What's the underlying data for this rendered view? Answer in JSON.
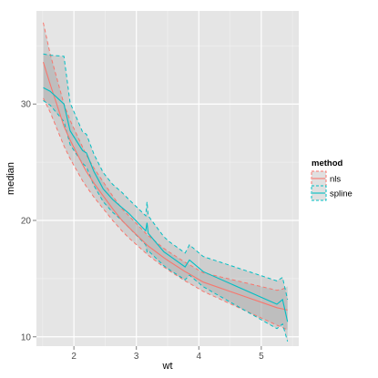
{
  "colors": {
    "panel_bg": "#e5e5e5",
    "grid_major": "#ffffff",
    "grid_minor": "#f2f2f2",
    "nls": "#f8766d",
    "spline": "#00bfc4",
    "ribbon_fill": "#999999",
    "text": "#4d4d4d"
  },
  "chart_data": {
    "type": "line",
    "title": "",
    "xlabel": "wt",
    "ylabel": "median",
    "xlim": [
      1.4,
      5.6
    ],
    "ylim": [
      9.2,
      38.0
    ],
    "x_ticks": [
      2,
      3,
      4,
      5
    ],
    "y_ticks": [
      10,
      20,
      30
    ],
    "grid": true,
    "legend": {
      "title": "method",
      "position": "right",
      "entries": [
        "nls",
        "spline"
      ]
    },
    "series": [
      {
        "name": "nls",
        "x": [
          1.51,
          1.62,
          1.84,
          1.94,
          2.14,
          2.2,
          2.32,
          2.47,
          2.62,
          2.77,
          2.88,
          3.15,
          3.19,
          3.44,
          3.52,
          3.78,
          3.85,
          4.07,
          5.25,
          5.34,
          5.42
        ],
        "y": [
          33.6,
          31.7,
          28.1,
          26.9,
          24.8,
          24.2,
          23.2,
          22.1,
          21.0,
          20.0,
          19.4,
          18.0,
          17.8,
          16.8,
          16.5,
          15.6,
          15.4,
          14.7,
          12.5,
          12.4,
          12.3
        ],
        "lower": [
          30.5,
          29.3,
          26.4,
          25.3,
          23.4,
          22.9,
          22.0,
          21.0,
          20.0,
          19.1,
          18.5,
          17.2,
          17.0,
          16.0,
          15.7,
          14.8,
          14.6,
          13.9,
          11.0,
          10.8,
          10.6
        ],
        "upper": [
          37.0,
          34.3,
          30.0,
          28.6,
          26.3,
          25.6,
          24.5,
          23.3,
          22.1,
          21.0,
          20.4,
          18.9,
          18.7,
          17.6,
          17.3,
          16.4,
          16.2,
          15.5,
          14.0,
          14.1,
          14.3
        ]
      },
      {
        "name": "spline",
        "x": [
          1.51,
          1.62,
          1.84,
          1.94,
          2.14,
          2.2,
          2.32,
          2.47,
          2.62,
          2.77,
          2.88,
          3.15,
          3.17,
          3.19,
          3.44,
          3.52,
          3.78,
          3.85,
          4.07,
          5.25,
          5.34,
          5.42
        ],
        "y": [
          31.4,
          31.1,
          30.0,
          27.7,
          26.0,
          25.8,
          24.2,
          22.7,
          21.8,
          21.1,
          20.6,
          19.1,
          19.8,
          18.9,
          17.3,
          17.0,
          16.0,
          16.6,
          15.6,
          12.8,
          13.2,
          11.3
        ],
        "lower": [
          30.3,
          29.9,
          28.5,
          26.5,
          24.9,
          24.6,
          23.0,
          21.6,
          20.7,
          20.0,
          19.4,
          17.9,
          17.3,
          17.4,
          16.1,
          15.8,
          14.9,
          15.3,
          14.3,
          10.7,
          11.1,
          9.6
        ],
        "upper": [
          34.3,
          34.2,
          34.1,
          30.1,
          27.6,
          27.4,
          25.7,
          24.1,
          23.1,
          22.4,
          21.8,
          20.4,
          21.6,
          20.4,
          18.6,
          18.2,
          17.2,
          17.9,
          16.9,
          14.8,
          15.1,
          13.2
        ]
      }
    ]
  }
}
